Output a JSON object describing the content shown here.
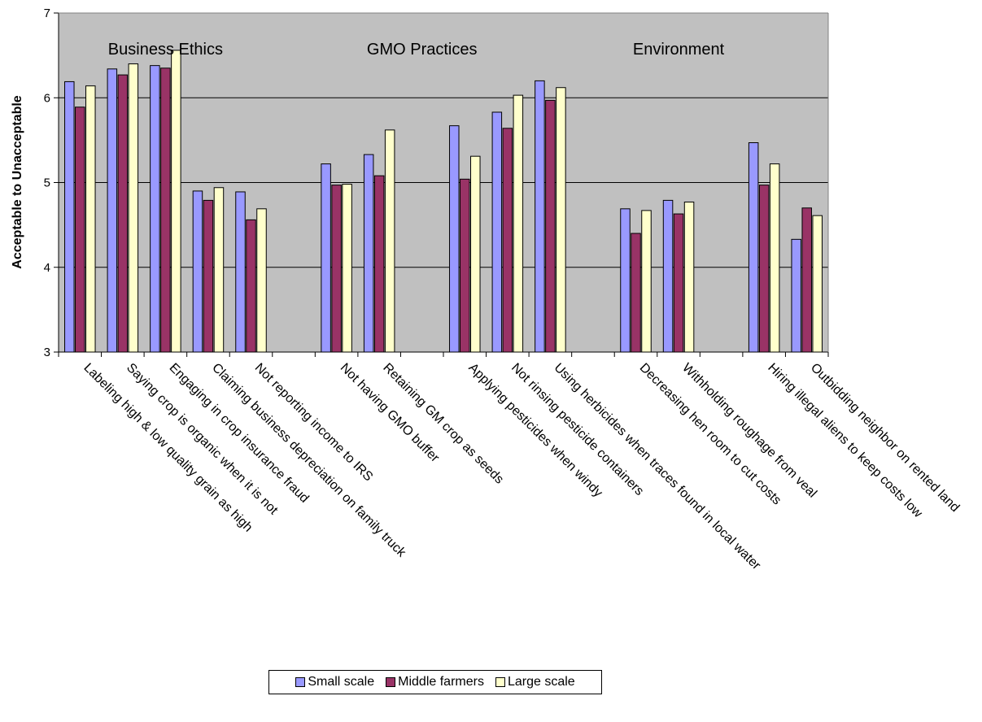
{
  "chart_data": {
    "type": "bar",
    "title": "",
    "xlabel": "",
    "ylabel": "Acceptable to Unacceptable",
    "ylim": [
      3,
      7
    ],
    "yticks": [
      "3",
      "4",
      "5",
      "6",
      "7"
    ],
    "grid": true,
    "legend_position": "bottom",
    "groups": [
      {
        "label": "Business Ethics",
        "start": 0,
        "end": 4
      },
      {
        "label": "GMO Practices",
        "start": 6,
        "end": 10
      },
      {
        "label": "Environment",
        "start": 12,
        "end": 16
      }
    ],
    "categories": [
      "Labeling high & low quality grain as high",
      "Saying crop is organic when it is not",
      "Engaging in crop insurance fraud",
      "Claiming business depreciation on family truck",
      "Not reporting income to IRS",
      "",
      "Not having GMO buffer",
      "Retaining GM crop as seeds",
      "",
      "Applying pesticides when windy",
      "Not rinsing pesticide containers",
      "Using herbicides when traces found in local water",
      "",
      "Decreasing hen room to cut costs",
      "Withholding roughage from veal",
      "",
      "Hiring illegal aliens to keep costs low",
      "Outbidding neighbor on rented land"
    ],
    "series": [
      {
        "name": "Small scale",
        "color": "#9999ff",
        "values": [
          6.19,
          6.34,
          6.38,
          4.9,
          4.89,
          null,
          5.22,
          5.33,
          null,
          5.67,
          5.83,
          6.2,
          null,
          4.69,
          4.79,
          null,
          5.47,
          4.33
        ]
      },
      {
        "name": "Middle farmers",
        "color": "#993366",
        "values": [
          5.89,
          6.27,
          6.35,
          4.79,
          4.56,
          null,
          4.97,
          5.08,
          null,
          5.04,
          5.64,
          5.97,
          null,
          4.4,
          4.63,
          null,
          4.97,
          4.7
        ]
      },
      {
        "name": "Large scale",
        "color": "#ffffcc",
        "values": [
          6.14,
          6.4,
          6.56,
          4.94,
          4.69,
          null,
          4.98,
          5.62,
          null,
          5.31,
          6.03,
          6.12,
          null,
          4.67,
          4.77,
          null,
          5.22,
          4.61
        ]
      }
    ]
  }
}
